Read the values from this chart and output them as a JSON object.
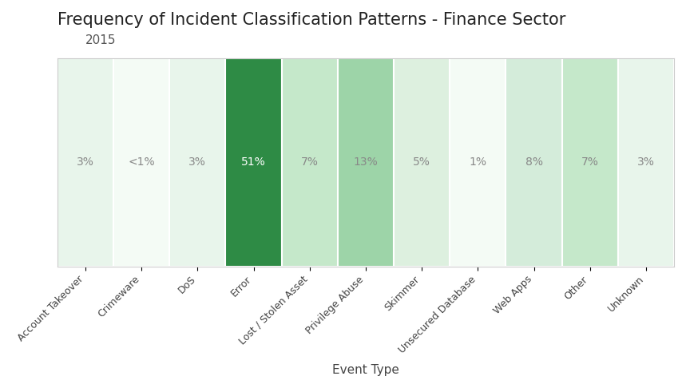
{
  "title": "Frequency of Incident Classification Patterns - Finance Sector",
  "subtitle": "2015",
  "xlabel": "Event Type",
  "categories": [
    "Account Takeover",
    "Crimeware",
    "DoS",
    "Error",
    "Lost / Stolen Asset",
    "Privilege Abuse",
    "Skimmer",
    "Unsecured Database",
    "Web Apps",
    "Other",
    "Unknown"
  ],
  "values": [
    3,
    1,
    3,
    51,
    7,
    13,
    5,
    1,
    8,
    7,
    3
  ],
  "labels": [
    "3%",
    "<1%",
    "3%",
    "51%",
    "7%",
    "13%",
    "5%",
    "1%",
    "8%",
    "7%",
    "3%"
  ],
  "bar_colors": [
    "#e8f5eb",
    "#f4fbf5",
    "#e8f5eb",
    "#2e8b45",
    "#c5e8ca",
    "#9dd4a8",
    "#ddf0df",
    "#f4fbf5",
    "#d4ecda",
    "#c5e8ca",
    "#e8f5eb"
  ],
  "background_color": "#ffffff",
  "plot_bg_color": "#ffffff",
  "border_color": "#cccccc",
  "text_color_light": "#888888",
  "text_color_dark": "#444444",
  "text_color_white": "#ffffff",
  "title_fontsize": 15,
  "subtitle_fontsize": 11,
  "label_fontsize": 10,
  "tick_fontsize": 9,
  "xlabel_fontsize": 11,
  "ylim": [
    0,
    1
  ]
}
